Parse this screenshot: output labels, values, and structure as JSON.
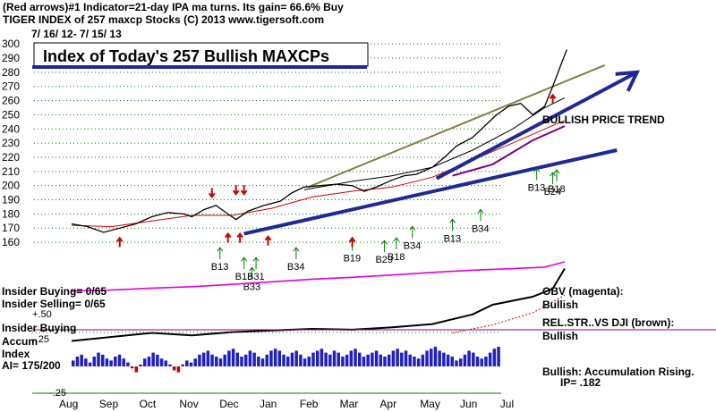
{
  "header": {
    "line1": "(Red arrows)#1 Indicator=21-day IPA ma turns. Its gain= 66.6% Buy",
    "line2": "TIGER INDEX of  257 maxcp Stocks  (C) 2013  www.tigersoft.com",
    "date_range": "7/ 16/ 12-  7/ 15/ 13",
    "title_box": "Index of Today's 257 Bullish MAXCPs"
  },
  "chart_data": {
    "type": "line",
    "title": "Index of Today's 257 Bullish MAXCPs",
    "x_ticks": [
      "Aug",
      "Sep",
      "Oct",
      "Nov",
      "Dec",
      "Jan",
      "Feb",
      "Mar",
      "Apr",
      "May",
      "Jun",
      "Jul"
    ],
    "y_ticks": [
      160,
      170,
      180,
      190,
      200,
      210,
      220,
      230,
      240,
      250,
      260,
      270,
      280,
      290,
      300
    ],
    "ylim": [
      155,
      302
    ],
    "price_path": [
      [
        0,
        173
      ],
      [
        0.4,
        171
      ],
      [
        0.8,
        167
      ],
      [
        1.2,
        170
      ],
      [
        1.6,
        173
      ],
      [
        2.0,
        178
      ],
      [
        2.4,
        181
      ],
      [
        2.8,
        180
      ],
      [
        3.0,
        178
      ],
      [
        3.3,
        183
      ],
      [
        3.6,
        186
      ],
      [
        3.9,
        180
      ],
      [
        4.1,
        176
      ],
      [
        4.4,
        182
      ],
      [
        4.8,
        186
      ],
      [
        5.2,
        189
      ],
      [
        5.5,
        195
      ],
      [
        5.8,
        199
      ],
      [
        6.2,
        200
      ],
      [
        6.6,
        201
      ],
      [
        7.0,
        200
      ],
      [
        7.3,
        196
      ],
      [
        7.6,
        199
      ],
      [
        8.0,
        204
      ],
      [
        8.3,
        207
      ],
      [
        8.6,
        208
      ],
      [
        9.0,
        213
      ],
      [
        9.3,
        220
      ],
      [
        9.6,
        228
      ],
      [
        10.0,
        234
      ],
      [
        10.3,
        242
      ],
      [
        10.6,
        250
      ],
      [
        10.9,
        256
      ],
      [
        11.2,
        258
      ],
      [
        11.5,
        250
      ],
      [
        11.8,
        256
      ],
      [
        12.0,
        270
      ],
      [
        12.2,
        285
      ],
      [
        12.35,
        296
      ]
    ],
    "ma_path": [
      [
        0,
        172
      ],
      [
        1,
        171
      ],
      [
        2,
        175
      ],
      [
        3,
        179
      ],
      [
        4,
        179
      ],
      [
        5,
        184
      ],
      [
        6,
        192
      ],
      [
        7,
        196
      ],
      [
        8,
        199
      ],
      [
        9,
        206
      ],
      [
        10,
        218
      ],
      [
        11,
        230
      ],
      [
        11.8,
        240
      ],
      [
        12.3,
        246
      ]
    ],
    "black_ma_path": [
      [
        5.8,
        197
      ],
      [
        7,
        203
      ],
      [
        8,
        207
      ],
      [
        9,
        213
      ],
      [
        10,
        225
      ],
      [
        11,
        240
      ],
      [
        11.8,
        255
      ],
      [
        12.3,
        262
      ]
    ],
    "purple_ma_path": [
      [
        9.5,
        207
      ],
      [
        10.5,
        215
      ],
      [
        11.5,
        232
      ],
      [
        12.3,
        242
      ]
    ],
    "green_trendline": [
      [
        5.9,
        199
      ],
      [
        13.3,
        285
      ]
    ],
    "blue_trend_1": [
      [
        4.3,
        166
      ],
      [
        13.6,
        225
      ]
    ],
    "blue_trend_2": [
      [
        9.1,
        205
      ],
      [
        14.1,
        280
      ]
    ],
    "signals": [
      {
        "label": "B13",
        "x": 3.7,
        "y": 148,
        "dir": "up"
      },
      {
        "label": "B13",
        "x": 4.3,
        "y": 141,
        "dir": "up"
      },
      {
        "label": "B31",
        "x": 4.6,
        "y": 141,
        "dir": "up"
      },
      {
        "label": "B33",
        "x": 4.5,
        "y": 134,
        "dir": "up"
      },
      {
        "label": "B34",
        "x": 5.6,
        "y": 148,
        "dir": "up"
      },
      {
        "label": "B19",
        "x": 7.0,
        "y": 154,
        "dir": "up"
      },
      {
        "label": "B29",
        "x": 7.8,
        "y": 153,
        "dir": "up"
      },
      {
        "label": "B18",
        "x": 8.1,
        "y": 155,
        "dir": "up"
      },
      {
        "label": "B34",
        "x": 8.5,
        "y": 163,
        "dir": "up"
      },
      {
        "label": "B13",
        "x": 9.5,
        "y": 168,
        "dir": "up"
      },
      {
        "label": "B34",
        "x": 10.2,
        "y": 175,
        "dir": "up"
      },
      {
        "label": "B13",
        "x": 11.6,
        "y": 204,
        "dir": "up"
      },
      {
        "label": "B18",
        "x": 12.1,
        "y": 203,
        "dir": "up"
      },
      {
        "label": "B24",
        "x": 12.0,
        "y": 201,
        "dir": "up"
      }
    ],
    "red_arrows": [
      {
        "x": 1.2,
        "y": 163,
        "dir": "up"
      },
      {
        "x": 3.5,
        "y": 192,
        "dir": "down"
      },
      {
        "x": 4.1,
        "y": 194,
        "dir": "down"
      },
      {
        "x": 4.3,
        "y": 194,
        "dir": "down"
      },
      {
        "x": 3.9,
        "y": 166,
        "dir": "up"
      },
      {
        "x": 4.2,
        "y": 166,
        "dir": "up"
      },
      {
        "x": 4.9,
        "y": 164,
        "dir": "up"
      },
      {
        "x": 7.0,
        "y": 163,
        "dir": "up"
      },
      {
        "x": 12.0,
        "y": 264,
        "dir": "up"
      }
    ],
    "annotations": {
      "bullish_trend": "BULLISH PRICE TREND",
      "insider_buying_ratio": "Insider Buying= 0/65",
      "insider_selling_ratio": "Insider Selling= 0/65",
      "plus50": "+.50",
      "insider_buying": "Insider Buying",
      "minus25": "-.25",
      "accum": "Accum",
      "index": "Index",
      "ai": "AI= 175/200",
      "bottom_minus25": "-.25",
      "obv_label": "OBV (magenta):",
      "obv_value": "Bullish",
      "relstr_label": "REL.STR..VS DJI (brown):",
      "relstr_value": "Bullish",
      "accum_label": "Bullish: Accumulation Rising.",
      "ip_value": "IP=  .182"
    },
    "obv_path": [
      [
        0,
        0.1
      ],
      [
        1,
        0.13
      ],
      [
        2,
        0.18
      ],
      [
        3,
        0.22
      ],
      [
        4,
        0.28
      ],
      [
        5,
        0.35
      ],
      [
        6,
        0.42
      ],
      [
        7,
        0.47
      ],
      [
        8,
        0.53
      ],
      [
        9,
        0.6
      ],
      [
        10,
        0.66
      ],
      [
        11,
        0.7
      ],
      [
        11.8,
        0.74
      ],
      [
        12.3,
        0.88
      ]
    ],
    "relstr_path": [
      [
        0,
        0.05
      ],
      [
        1,
        0.1
      ],
      [
        2,
        0.15
      ],
      [
        3,
        0.12
      ],
      [
        4,
        0.16
      ],
      [
        5,
        0.18
      ],
      [
        6,
        0.2
      ],
      [
        7,
        0.19
      ],
      [
        8,
        0.22
      ],
      [
        9,
        0.26
      ],
      [
        10,
        0.38
      ],
      [
        10.5,
        0.5
      ],
      [
        11,
        0.55
      ],
      [
        11.5,
        0.6
      ],
      [
        12.0,
        0.7
      ],
      [
        12.3,
        0.95
      ]
    ],
    "relstr_ma_path": [
      [
        9.5,
        0.15
      ],
      [
        10.5,
        0.25
      ],
      [
        11.5,
        0.4
      ],
      [
        12.3,
        0.62
      ]
    ],
    "accum_values": [
      0.3,
      0.5,
      0.6,
      0.4,
      0.2,
      0.5,
      0.7,
      0.6,
      0.4,
      0.3,
      0.5,
      0.6,
      0.4,
      0.2,
      -0.1,
      -0.3,
      0.1,
      0.4,
      0.5,
      0.7,
      0.6,
      0.4,
      0.3,
      0.1,
      -0.2,
      -0.3,
      0.1,
      0.3,
      0.2,
      0.4,
      0.6,
      0.7,
      0.8,
      0.6,
      0.5,
      0.4,
      0.6,
      0.8,
      0.9,
      0.7,
      0.5,
      0.6,
      0.8,
      0.7,
      0.5,
      0.4,
      0.6,
      0.8,
      0.9,
      0.8,
      0.6,
      0.5,
      0.7,
      0.8,
      0.6,
      0.4,
      0.5,
      0.7,
      0.8,
      0.9,
      0.7,
      0.6,
      0.8,
      0.7,
      0.5,
      0.6,
      0.8,
      0.9,
      0.7,
      0.5,
      0.6,
      0.7,
      0.8,
      0.6,
      0.5,
      0.6,
      0.8,
      0.9,
      0.7,
      0.8,
      0.6,
      0.5,
      0.4,
      0.6,
      0.8,
      0.9,
      1.0,
      0.8,
      0.7,
      0.6,
      0.5,
      0.3,
      0.4,
      0.6,
      0.8,
      0.7,
      0.5,
      0.4,
      0.5,
      0.7,
      0.9,
      1.0
    ],
    "colors": {
      "price": "#000000",
      "ma": "#cc0000",
      "green_line": "#808040",
      "blue": "#1e2896",
      "purple": "#800080",
      "magenta": "#e000e0",
      "accum": "#2020c0",
      "accum_neg": "#cc0000",
      "signal": "#008000",
      "sell": "#cc0000"
    }
  }
}
